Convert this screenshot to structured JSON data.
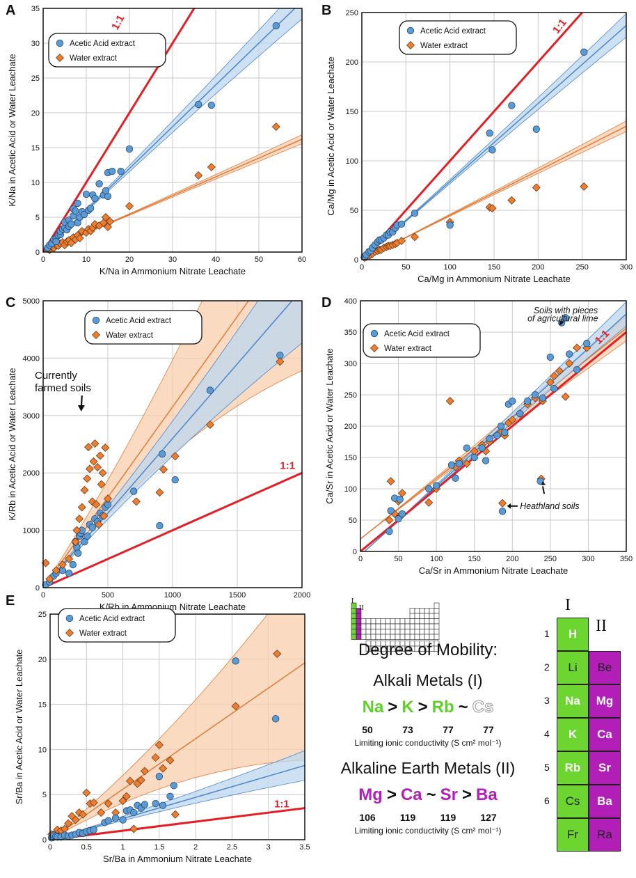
{
  "legend": {
    "acetic": "Acetic Acid extract",
    "water": "Water extract"
  },
  "colors": {
    "acetic_fill": "#5b9bd5",
    "acetic_line": "#4a86c8",
    "acetic_band": "#bcd7ef",
    "water_fill": "#ed7d31",
    "water_line": "#e07b39",
    "water_band": "#f8cfae",
    "oneone": "#e31e24"
  },
  "ylabel_all": "Acetic Acid or Water Leachate",
  "chart_data": [
    {
      "panel": "A",
      "type": "scatter",
      "xlabel": "K/Na in Ammonium Nitrate Leachate",
      "ylabel": "K/Na in Acetic Acid or Water Leachate",
      "xlim": [
        0,
        60
      ],
      "ylim": [
        0,
        35
      ],
      "xticks": [
        0,
        10,
        20,
        30,
        40,
        50,
        60
      ],
      "yticks": [
        0,
        5,
        10,
        15,
        20,
        25,
        30,
        35
      ],
      "oneone_label": "1:1",
      "acetic_fit": {
        "slope": 0.6,
        "band": 0.07
      },
      "water_fit": {
        "slope": 0.27,
        "band": 0.04
      },
      "annotations": [],
      "series": [
        {
          "name": "Acetic Acid extract",
          "x": [
            1,
            1.5,
            2,
            2.5,
            3,
            3,
            3.5,
            4,
            4,
            4.5,
            5,
            5,
            5.5,
            6,
            6,
            6.5,
            7,
            7,
            7.5,
            8,
            8,
            8.5,
            9,
            9.5,
            10,
            10.5,
            11,
            11.5,
            12,
            13,
            14,
            14.5,
            15,
            15,
            16,
            18,
            20,
            36,
            39,
            54
          ],
          "y": [
            0.6,
            1,
            1.2,
            1.8,
            2,
            1.5,
            2.4,
            2.5,
            3,
            3.3,
            3.5,
            4.3,
            3.2,
            4.6,
            3.7,
            4,
            5.2,
            6.2,
            5.9,
            4.2,
            7,
            5,
            5.8,
            5.4,
            8.3,
            6,
            6.3,
            8.2,
            7.7,
            9.8,
            8.2,
            8.8,
            11.4,
            8,
            11.6,
            11.6,
            14.8,
            21.2,
            21.1,
            32.5
          ]
        },
        {
          "name": "Water extract",
          "x": [
            1,
            1.5,
            2,
            2.5,
            3,
            3.5,
            4,
            4.5,
            5,
            5.5,
            6,
            6.5,
            7,
            7.5,
            8,
            8.5,
            9,
            10,
            10.5,
            11,
            11.5,
            12,
            13,
            14,
            14.5,
            15,
            15.5,
            20,
            36,
            39,
            54
          ],
          "y": [
            0.5,
            0.3,
            0.8,
            0.6,
            1,
            0.9,
            1.2,
            1.4,
            1,
            1.5,
            1.7,
            1.3,
            2.1,
            1.8,
            2.4,
            2,
            3,
            2.8,
            3.3,
            3,
            3.5,
            4,
            3.8,
            4.2,
            5,
            3.6,
            4.4,
            6.6,
            11,
            12.2,
            18
          ]
        }
      ]
    },
    {
      "panel": "B",
      "type": "scatter",
      "xlabel": "Ca/Mg in Ammonium Nitrate Leachate",
      "ylabel": "Ca/Mg in Acetic Acid or Water Leachate",
      "xlim": [
        0,
        300
      ],
      "ylim": [
        0,
        250
      ],
      "xticks": [
        0,
        50,
        100,
        150,
        200,
        250,
        300
      ],
      "yticks": [
        0,
        50,
        100,
        150,
        200,
        250
      ],
      "oneone_label": "1:1",
      "acetic_fit": {
        "slope": 0.79,
        "band": 0.05
      },
      "water_fit": {
        "slope": 0.45,
        "band": 0.04
      },
      "annotations": [],
      "series": [
        {
          "name": "Acetic Acid extract",
          "x": [
            3,
            5,
            8,
            10,
            12,
            15,
            18,
            20,
            22,
            25,
            28,
            30,
            32,
            35,
            38,
            40,
            45,
            60,
            100,
            145,
            148,
            170,
            198,
            252
          ],
          "y": [
            3,
            5,
            8,
            9,
            12,
            15,
            18,
            20,
            20,
            22,
            25,
            25,
            28,
            28,
            32,
            35,
            36,
            47,
            35,
            128,
            111,
            156,
            132,
            210
          ]
        },
        {
          "name": "Water extract",
          "x": [
            3,
            5,
            8,
            10,
            12,
            15,
            18,
            20,
            22,
            25,
            28,
            30,
            32,
            35,
            38,
            40,
            45,
            60,
            100,
            145,
            148,
            170,
            198,
            252
          ],
          "y": [
            2,
            3,
            4,
            5,
            6,
            8,
            9,
            10,
            10,
            12,
            13,
            14,
            14,
            15,
            16,
            17,
            19,
            23,
            38,
            53,
            52,
            60,
            73,
            74
          ]
        }
      ]
    },
    {
      "panel": "C",
      "type": "scatter",
      "xlabel": "K/Rb in Ammonium Nitrate Leachate",
      "ylabel": "K/Rb in Acetic Acid or Water Leachate",
      "xlim": [
        0,
        2000
      ],
      "ylim": [
        0,
        5000
      ],
      "xticks": [
        0,
        500,
        1000,
        1500,
        2000
      ],
      "yticks": [
        0,
        1000,
        2000,
        3000,
        4000,
        5000
      ],
      "oneone_label": "1:1",
      "acetic_fit": {
        "slope": 2.6,
        "band": 0.18
      },
      "water_fit": {
        "slope": 3.15,
        "band": 0.4
      },
      "annotations": [
        {
          "text": "Currently farmed soils",
          "x": 230,
          "y": 2800
        }
      ],
      "series": [
        {
          "name": "Acetic Acid extract",
          "x": [
            20,
            50,
            80,
            100,
            150,
            200,
            230,
            250,
            260,
            270,
            280,
            290,
            300,
            320,
            340,
            360,
            380,
            400,
            420,
            440,
            460,
            480,
            500,
            700,
            900,
            920,
            1020,
            1290,
            1830
          ],
          "y": [
            50,
            100,
            200,
            250,
            300,
            250,
            400,
            800,
            700,
            600,
            900,
            950,
            1000,
            800,
            900,
            1100,
            1050,
            1200,
            1150,
            1300,
            1250,
            1400,
            1450,
            1680,
            1080,
            2330,
            1880,
            3440,
            4050
          ]
        },
        {
          "name": "Water extract",
          "x": [
            20,
            50,
            100,
            150,
            200,
            250,
            260,
            280,
            300,
            320,
            340,
            350,
            360,
            380,
            390,
            400,
            410,
            420,
            430,
            440,
            450,
            460,
            470,
            480,
            500,
            720,
            900,
            930,
            1020,
            1290,
            1830
          ],
          "y": [
            430,
            150,
            300,
            400,
            500,
            800,
            1000,
            1200,
            1400,
            1700,
            1900,
            2450,
            2070,
            1500,
            2200,
            2510,
            1450,
            2100,
            1100,
            2300,
            1800,
            2000,
            1250,
            2440,
            1550,
            1500,
            1660,
            2060,
            2290,
            2840,
            3940
          ]
        }
      ]
    },
    {
      "panel": "D",
      "type": "scatter",
      "xlabel": "Ca/Sr in Ammonium Nitrate Leachate",
      "ylabel": "Ca/Sr in Acetic Acid or Water Leachate",
      "xlim": [
        0,
        350
      ],
      "ylim": [
        0,
        400
      ],
      "xticks": [
        0,
        50,
        100,
        150,
        200,
        250,
        300,
        350
      ],
      "yticks": [
        0,
        50,
        100,
        150,
        200,
        250,
        300,
        350,
        400
      ],
      "oneone_label": "1:1",
      "acetic_fit": {
        "slope": 1.1,
        "band": 0.05,
        "intercept": -6
      },
      "water_fit": {
        "slope": 0.96,
        "band": 0.06,
        "intercept": 20
      },
      "annotations": [
        {
          "text": "Soils with pieces of agricultural lime",
          "x": 230,
          "y": 360
        },
        {
          "text": "Heathland soils",
          "x": 200,
          "y": 70
        }
      ],
      "series": [
        {
          "name": "Acetic Acid extract",
          "x": [
            38,
            40,
            45,
            50,
            52,
            55,
            90,
            100,
            120,
            125,
            130,
            140,
            150,
            160,
            165,
            170,
            180,
            185,
            190,
            195,
            200,
            210,
            220,
            230,
            240,
            250,
            255,
            265,
            270,
            275,
            285,
            298,
            187,
            237
          ],
          "y": [
            32,
            65,
            85,
            52,
            83,
            60,
            100,
            105,
            138,
            117,
            140,
            165,
            150,
            165,
            145,
            180,
            185,
            200,
            190,
            235,
            240,
            220,
            240,
            250,
            245,
            310,
            260,
            365,
            373,
            315,
            290,
            332,
            64,
            112
          ]
        },
        {
          "name": "Water extract",
          "x": [
            38,
            40,
            45,
            50,
            52,
            55,
            90,
            100,
            118,
            125,
            130,
            140,
            150,
            160,
            165,
            170,
            180,
            185,
            190,
            195,
            200,
            210,
            220,
            230,
            240,
            250,
            255,
            262,
            270,
            275,
            285,
            298,
            187,
            238
          ],
          "y": [
            50,
            112,
            60,
            80,
            55,
            93,
            78,
            100,
            240,
            135,
            145,
            140,
            160,
            170,
            160,
            175,
            185,
            190,
            185,
            205,
            210,
            220,
            235,
            245,
            240,
            270,
            280,
            288,
            247,
            300,
            325,
            325,
            77,
            116
          ]
        }
      ]
    },
    {
      "panel": "E",
      "type": "scatter",
      "xlabel": "Sr/Ba in Ammonium Nitrate Leachate",
      "ylabel": "Sr/Ba in Acetic Acid or Water Leachate",
      "xlim": [
        0,
        3.5
      ],
      "ylim": [
        0,
        25
      ],
      "xticks": [
        0,
        0.5,
        1.0,
        1.5,
        2.0,
        2.5,
        3.0,
        3.5
      ],
      "yticks": [
        0,
        5,
        10,
        15,
        20,
        25
      ],
      "oneone_label": "1:1",
      "acetic_fit": {
        "slope": 2.35,
        "band": 0.2
      },
      "water_fit": {
        "slope": 5.6,
        "band": 0.55
      },
      "annotations": [],
      "series": [
        {
          "name": "Acetic Acid extract",
          "x": [
            0.02,
            0.05,
            0.08,
            0.1,
            0.15,
            0.2,
            0.25,
            0.3,
            0.35,
            0.4,
            0.45,
            0.5,
            0.55,
            0.6,
            0.75,
            0.8,
            0.9,
            1.0,
            1.05,
            1.1,
            1.15,
            1.2,
            1.25,
            1.3,
            1.45,
            1.5,
            1.55,
            1.65,
            1.7,
            2.55,
            3.1
          ],
          "y": [
            0.2,
            0.5,
            0.4,
            0.3,
            0.3,
            0.5,
            0.4,
            0.5,
            0.6,
            0.8,
            0.7,
            0.9,
            1.0,
            1.1,
            1.9,
            2.1,
            2.4,
            2.2,
            3.2,
            3.3,
            3.0,
            3.8,
            3.5,
            3.9,
            4.0,
            7.0,
            3.8,
            4.8,
            6.0,
            19.8,
            13.4
          ]
        },
        {
          "name": "Water extract",
          "x": [
            0.02,
            0.05,
            0.08,
            0.1,
            0.15,
            0.2,
            0.25,
            0.3,
            0.35,
            0.4,
            0.45,
            0.5,
            0.55,
            0.6,
            0.7,
            0.8,
            0.9,
            1.0,
            1.05,
            1.1,
            1.15,
            1.2,
            1.25,
            1.3,
            1.45,
            1.5,
            1.55,
            1.65,
            1.72,
            2.55,
            3.12
          ],
          "y": [
            0.6,
            0.3,
            0.8,
            1.1,
            1.0,
            1.2,
            1.8,
            2.6,
            2.2,
            3.0,
            2.8,
            5.2,
            4.0,
            4.1,
            3.0,
            4.0,
            3.0,
            4.3,
            4.8,
            6.5,
            1.2,
            6.2,
            6.6,
            7.6,
            9.1,
            10.5,
            7.9,
            8.8,
            2.8,
            14.8,
            20.6
          ]
        }
      ]
    }
  ],
  "info": {
    "mobility_title": "Degree of Mobility:",
    "group1_title": "Alkali Metals (I)",
    "group2_title": "Alkaline Earth Metals (II)",
    "alkali_order": [
      {
        "sym": "Na",
        "c": "g"
      },
      {
        "sym": "K",
        "c": "g"
      },
      {
        "sym": "Rb",
        "c": "g"
      },
      {
        "sym": "Cs",
        "c": "o"
      }
    ],
    "alkali_ops": [
      ">",
      ">",
      "~"
    ],
    "alkali_cond": [
      "50",
      "73",
      "77",
      "77"
    ],
    "earth_order": [
      {
        "sym": "Mg",
        "c": "p"
      },
      {
        "sym": "Ca",
        "c": "p"
      },
      {
        "sym": "Sr",
        "c": "p"
      },
      {
        "sym": "Ba",
        "c": "p"
      }
    ],
    "earth_ops": [
      ">",
      "~",
      ">"
    ],
    "earth_cond": [
      "106",
      "119",
      "119",
      "127"
    ],
    "cond_label": "Limiting ionic conductivity (S cm² mol⁻¹)",
    "mini_I": "I",
    "mini_II": "II"
  },
  "ptable": {
    "head_I": "I",
    "head_II": "II",
    "rows": [
      {
        "n": "1",
        "g1": "H",
        "g1b": true,
        "g2": null
      },
      {
        "n": "2",
        "g1": "Li",
        "g1b": false,
        "g2": "Be",
        "g2b": false
      },
      {
        "n": "3",
        "g1": "Na",
        "g1b": true,
        "g2": "Mg",
        "g2b": true
      },
      {
        "n": "4",
        "g1": "K",
        "g1b": true,
        "g2": "Ca",
        "g2b": true
      },
      {
        "n": "5",
        "g1": "Rb",
        "g1b": true,
        "g2": "Sr",
        "g2b": true
      },
      {
        "n": "6",
        "g1": "Cs",
        "g1b": false,
        "g2": "Ba",
        "g2b": true
      },
      {
        "n": "",
        "g1": "Fr",
        "g1b": false,
        "g2": "Ra",
        "g2b": false
      }
    ]
  }
}
